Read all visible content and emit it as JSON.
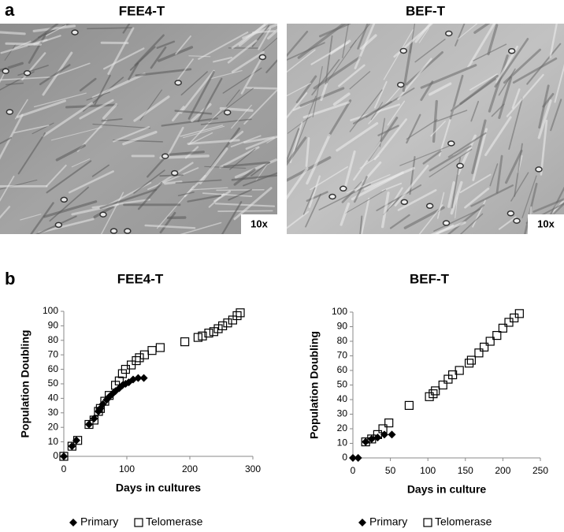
{
  "panel_a": {
    "label": "a",
    "images": [
      {
        "title": "FEE4-T",
        "magnification": "10x"
      },
      {
        "title": "BEF-T",
        "magnification": "10x"
      }
    ]
  },
  "panel_b": "b",
  "chart_data": [
    {
      "type": "scatter",
      "title": "FEE4-T",
      "xlabel": "Days in cultures",
      "ylabel": "Population Doubling",
      "xlim": [
        0,
        300
      ],
      "xticks": [
        0,
        100,
        200,
        300
      ],
      "ylim": [
        0,
        100
      ],
      "yticks": [
        0,
        10,
        20,
        30,
        40,
        50,
        60,
        70,
        80,
        90,
        100
      ],
      "series": [
        {
          "name": "Primary",
          "color": "#000000",
          "marker": "diamond",
          "x": [
            0,
            13,
            20,
            40,
            48,
            55,
            58,
            62,
            68,
            72,
            77,
            82,
            88,
            93,
            98,
            103,
            110,
            118,
            127
          ],
          "values": [
            0,
            7,
            11,
            22,
            26,
            31,
            33,
            36,
            39,
            41,
            43,
            45,
            47,
            49,
            50,
            51,
            53,
            54,
            54
          ]
        },
        {
          "name": "Telomerase",
          "color": "#000000",
          "marker": "square",
          "x": [
            0,
            13,
            22,
            40,
            48,
            55,
            58,
            65,
            72,
            82,
            88,
            93,
            98,
            107,
            115,
            120,
            128,
            140,
            153,
            192,
            213,
            220,
            230,
            238,
            245,
            252,
            260,
            268,
            275,
            280
          ],
          "values": [
            0,
            7,
            11,
            22,
            25,
            31,
            33,
            38,
            42,
            49,
            52,
            57,
            60,
            63,
            66,
            68,
            70,
            73,
            75,
            79,
            82,
            83,
            85,
            86,
            88,
            90,
            92,
            94,
            97,
            99
          ]
        }
      ]
    },
    {
      "type": "scatter",
      "title": "BEF-T",
      "xlabel": "Days in culture",
      "ylabel": "Population Doubling",
      "xlim": [
        0,
        250
      ],
      "xticks": [
        0,
        50,
        100,
        150,
        200,
        250
      ],
      "ylim": [
        0,
        100
      ],
      "yticks": [
        0,
        10,
        20,
        30,
        40,
        50,
        60,
        70,
        80,
        90,
        100
      ],
      "series": [
        {
          "name": "Primary",
          "color": "#000000",
          "marker": "diamond",
          "x": [
            0,
            7,
            17,
            25,
            33,
            42,
            52
          ],
          "values": [
            0,
            0,
            11,
            13,
            14,
            16,
            16
          ]
        },
        {
          "name": "Telomerase",
          "color": "#000000",
          "marker": "square",
          "x": [
            17,
            25,
            33,
            40,
            48,
            75,
            102,
            107,
            110,
            120,
            127,
            133,
            142,
            155,
            158,
            168,
            175,
            183,
            192,
            200,
            208,
            215,
            222
          ],
          "values": [
            11,
            13,
            16,
            20,
            24,
            36,
            42,
            44,
            46,
            50,
            54,
            57,
            60,
            65,
            67,
            72,
            76,
            80,
            84,
            89,
            93,
            96,
            99
          ]
        }
      ]
    }
  ]
}
